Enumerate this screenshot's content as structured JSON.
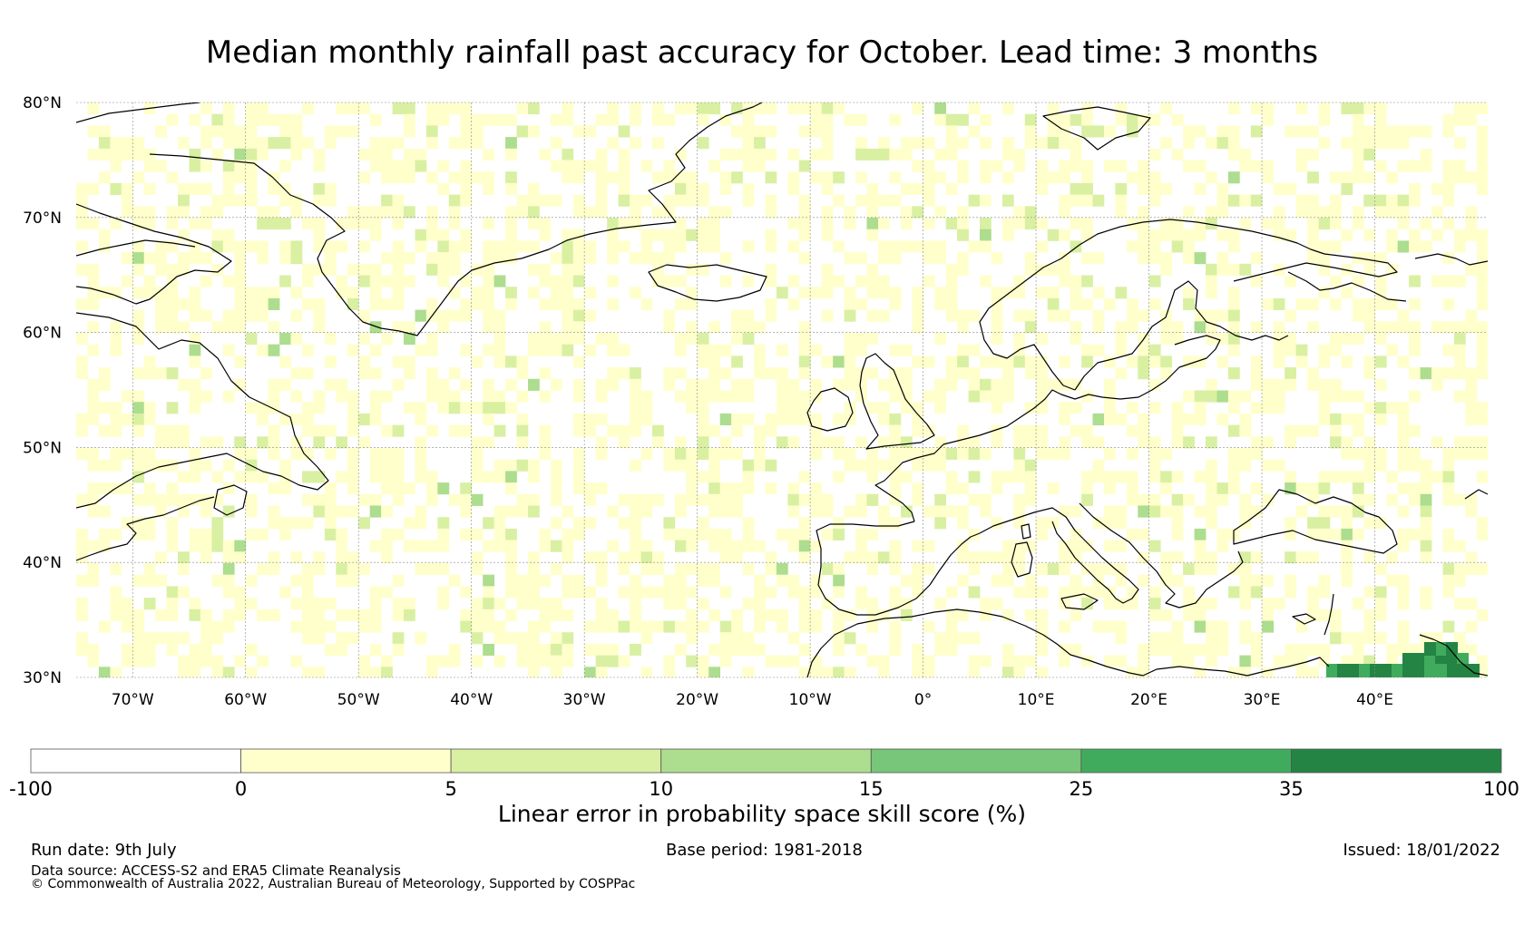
{
  "title": "Median monthly rainfall past accuracy for October. Lead time: 3 months",
  "map": {
    "lon_range": [
      -75,
      50
    ],
    "lat_range": [
      30,
      80
    ],
    "lat_ticks": [
      "30°N",
      "40°N",
      "50°N",
      "60°N",
      "70°N",
      "80°N"
    ],
    "lat_values": [
      30,
      40,
      50,
      60,
      70,
      80
    ],
    "lon_ticks": [
      "70°W",
      "60°W",
      "50°W",
      "40°W",
      "30°W",
      "20°W",
      "10°W",
      "0°",
      "10°E",
      "20°E",
      "30°E",
      "40°E"
    ],
    "lon_values": [
      -70,
      -60,
      -50,
      -40,
      -30,
      -20,
      -10,
      0,
      10,
      20,
      30,
      40
    ],
    "coastline_color": "#000000",
    "gridline_color": "#888888"
  },
  "colorbar": {
    "title": "Linear error in probability space skill score (%)",
    "ticks": [
      "-100",
      "0",
      "5",
      "10",
      "15",
      "25",
      "35",
      "100"
    ],
    "colors": [
      "#ffffff",
      "#ffffcc",
      "#d9f0a3",
      "#addd8e",
      "#78c679",
      "#41ab5d",
      "#238443"
    ]
  },
  "footer": {
    "run_date": "Run date: 9th July",
    "base_period": "Base period: 1981-2018",
    "issued": "Issued: 18/01/2022",
    "data_source": "Data source: ACCESS-S2 and ERA5 Climate Reanalysis",
    "copyright": "© Commonwealth of Australia 2022, Australian Bureau of Meteorology, Supported by COSPPac"
  }
}
